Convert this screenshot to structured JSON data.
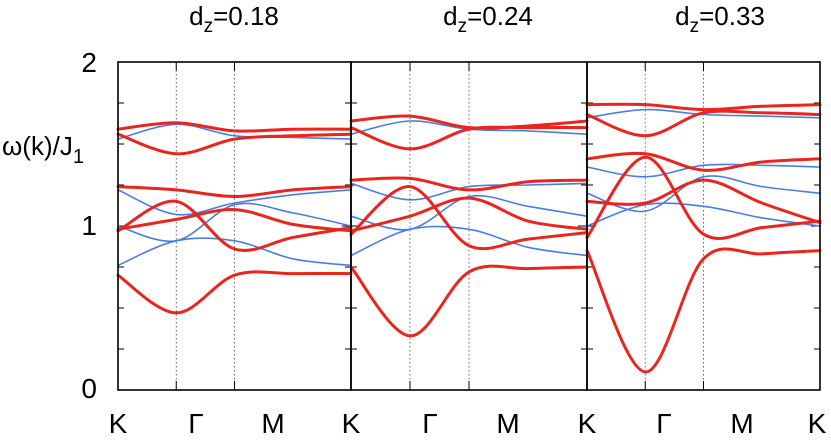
{
  "chart_data": [
    {
      "type": "line",
      "title": "dz=0.18",
      "title_main": "d",
      "title_sub": "z",
      "title_value": "=0.18",
      "ylabel": "ω(k)/J1",
      "ylabel_main": "ω(k)/J",
      "ylabel_sub": "1",
      "x_ticks": [
        "K",
        "Γ",
        "M",
        "K"
      ],
      "y_ticks": [
        "0",
        "1",
        "2"
      ],
      "ylim": [
        0,
        2
      ],
      "x": [
        0,
        0.5,
        1,
        1.5,
        2
      ],
      "series": [
        {
          "color": "#e8261d",
          "values": [
            0.7,
            0.47,
            0.7,
            0.71,
            0.71
          ]
        },
        {
          "color": "#e8261d",
          "values": [
            0.97,
            1.15,
            0.86,
            0.93,
            0.99
          ]
        },
        {
          "color": "#e8261d",
          "values": [
            0.98,
            1.04,
            1.1,
            1.01,
            0.97
          ]
        },
        {
          "color": "#e8261d",
          "values": [
            1.24,
            1.22,
            1.18,
            1.22,
            1.24
          ]
        },
        {
          "color": "#e8261d",
          "values": [
            1.56,
            1.44,
            1.53,
            1.55,
            1.56
          ]
        },
        {
          "color": "#e8261d",
          "values": [
            1.59,
            1.63,
            1.58,
            1.59,
            1.59
          ]
        },
        {
          "color": "#4a7ede",
          "values": [
            0.76,
            0.91,
            0.91,
            0.8,
            0.76
          ]
        },
        {
          "color": "#4a7ede",
          "values": [
            1.0,
            0.91,
            1.13,
            1.08,
            1.0
          ]
        },
        {
          "color": "#4a7ede",
          "values": [
            1.22,
            1.07,
            1.14,
            1.19,
            1.22
          ]
        },
        {
          "color": "#4a7ede",
          "values": [
            1.53,
            1.62,
            1.55,
            1.54,
            1.53
          ]
        }
      ]
    },
    {
      "type": "line",
      "title": "dz=0.24",
      "title_main": "d",
      "title_sub": "z",
      "title_value": "=0.24",
      "x_ticks": [
        "Γ",
        "M",
        "K"
      ],
      "ylim": [
        0,
        2
      ],
      "x": [
        0,
        0.5,
        1,
        1.5,
        2
      ],
      "series": [
        {
          "color": "#e8261d",
          "values": [
            0.75,
            0.33,
            0.72,
            0.74,
            0.75
          ]
        },
        {
          "color": "#e8261d",
          "values": [
            0.95,
            1.24,
            0.88,
            0.92,
            0.96
          ]
        },
        {
          "color": "#e8261d",
          "values": [
            0.97,
            1.06,
            1.17,
            1.03,
            0.98
          ]
        },
        {
          "color": "#e8261d",
          "values": [
            1.28,
            1.29,
            1.22,
            1.27,
            1.28
          ]
        },
        {
          "color": "#e8261d",
          "values": [
            1.6,
            1.47,
            1.59,
            1.6,
            1.6
          ]
        },
        {
          "color": "#e8261d",
          "values": [
            1.64,
            1.67,
            1.6,
            1.61,
            1.64
          ]
        },
        {
          "color": "#4a7ede",
          "values": [
            0.82,
            0.98,
            0.98,
            0.87,
            0.82
          ]
        },
        {
          "color": "#4a7ede",
          "values": [
            1.06,
            0.98,
            1.18,
            1.12,
            1.06
          ]
        },
        {
          "color": "#4a7ede",
          "values": [
            1.26,
            1.16,
            1.24,
            1.25,
            1.26
          ]
        },
        {
          "color": "#4a7ede",
          "values": [
            1.56,
            1.64,
            1.59,
            1.58,
            1.56
          ]
        }
      ]
    },
    {
      "type": "line",
      "title": "dz=0.33",
      "title_main": "d",
      "title_sub": "z",
      "title_value": "=0.33",
      "x_ticks": [
        "Γ",
        "M",
        "K"
      ],
      "ylim": [
        0,
        2
      ],
      "x": [
        0,
        0.5,
        1,
        1.5,
        2
      ],
      "series": [
        {
          "color": "#e8261d",
          "values": [
            0.85,
            0.11,
            0.8,
            0.83,
            0.85
          ]
        },
        {
          "color": "#e8261d",
          "values": [
            0.93,
            1.42,
            0.95,
            0.99,
            1.03
          ]
        },
        {
          "color": "#e8261d",
          "values": [
            1.15,
            1.14,
            1.28,
            1.14,
            1.02
          ]
        },
        {
          "color": "#e8261d",
          "values": [
            1.41,
            1.44,
            1.34,
            1.39,
            1.41
          ]
        },
        {
          "color": "#e8261d",
          "values": [
            1.68,
            1.55,
            1.69,
            1.69,
            1.68
          ]
        },
        {
          "color": "#e8261d",
          "values": [
            1.74,
            1.74,
            1.71,
            1.73,
            1.74
          ]
        },
        {
          "color": "#4a7ede",
          "values": [
            1.0,
            1.13,
            1.12,
            1.05,
            1.0
          ]
        },
        {
          "color": "#4a7ede",
          "values": [
            1.2,
            1.09,
            1.3,
            1.24,
            1.2
          ]
        },
        {
          "color": "#4a7ede",
          "values": [
            1.36,
            1.3,
            1.37,
            1.37,
            1.36
          ]
        },
        {
          "color": "#4a7ede",
          "values": [
            1.66,
            1.71,
            1.68,
            1.67,
            1.66
          ]
        }
      ]
    }
  ]
}
